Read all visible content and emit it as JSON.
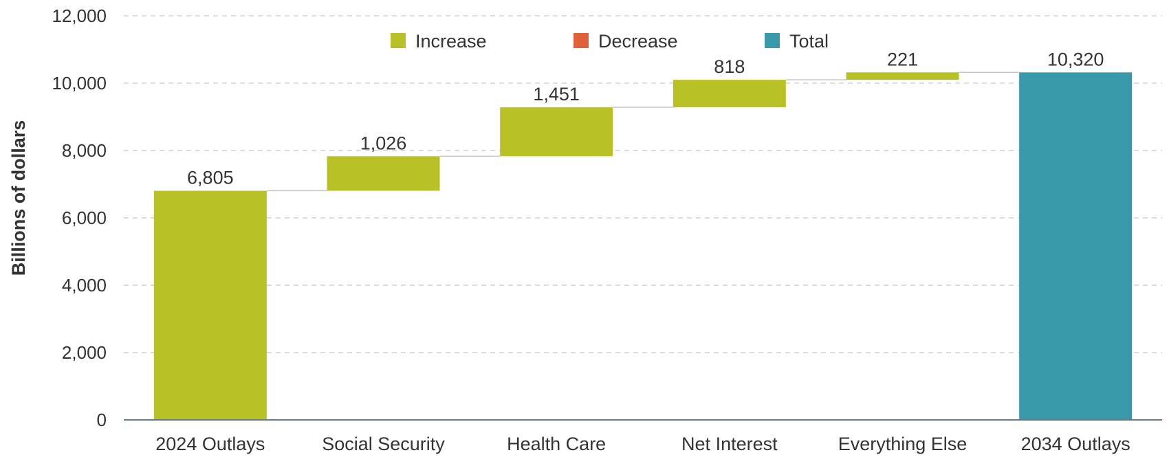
{
  "chart_data": {
    "type": "bar",
    "subtype": "waterfall",
    "ylabel": "Billions of dollars",
    "ylim": [
      0,
      12000
    ],
    "yticks": [
      0,
      2000,
      4000,
      6000,
      8000,
      10000,
      12000
    ],
    "ytick_labels": [
      "0",
      "2,000",
      "4,000",
      "6,000",
      "8,000",
      "10,000",
      "12,000"
    ],
    "grid": true,
    "legend_position": "top-center",
    "legend": [
      {
        "name": "Increase",
        "color": "#b8c227"
      },
      {
        "name": "Decrease",
        "color": "#e0603a"
      },
      {
        "name": "Total",
        "color": "#3899aa"
      }
    ],
    "bars": [
      {
        "category": "2024 Outlays",
        "kind": "Increase",
        "start": 0,
        "end": 6805,
        "label": "6,805"
      },
      {
        "category": "Social Security",
        "kind": "Increase",
        "start": 6805,
        "end": 7831,
        "label": "1,026"
      },
      {
        "category": "Health Care",
        "kind": "Increase",
        "start": 7831,
        "end": 9282,
        "label": "1,451"
      },
      {
        "category": "Net Interest",
        "kind": "Increase",
        "start": 9282,
        "end": 10100,
        "label": "818"
      },
      {
        "category": "Everything Else",
        "kind": "Increase",
        "start": 10100,
        "end": 10321,
        "label": "221"
      },
      {
        "category": "2034 Outlays",
        "kind": "Total",
        "start": 0,
        "end": 10320,
        "label": "10,320"
      }
    ]
  }
}
